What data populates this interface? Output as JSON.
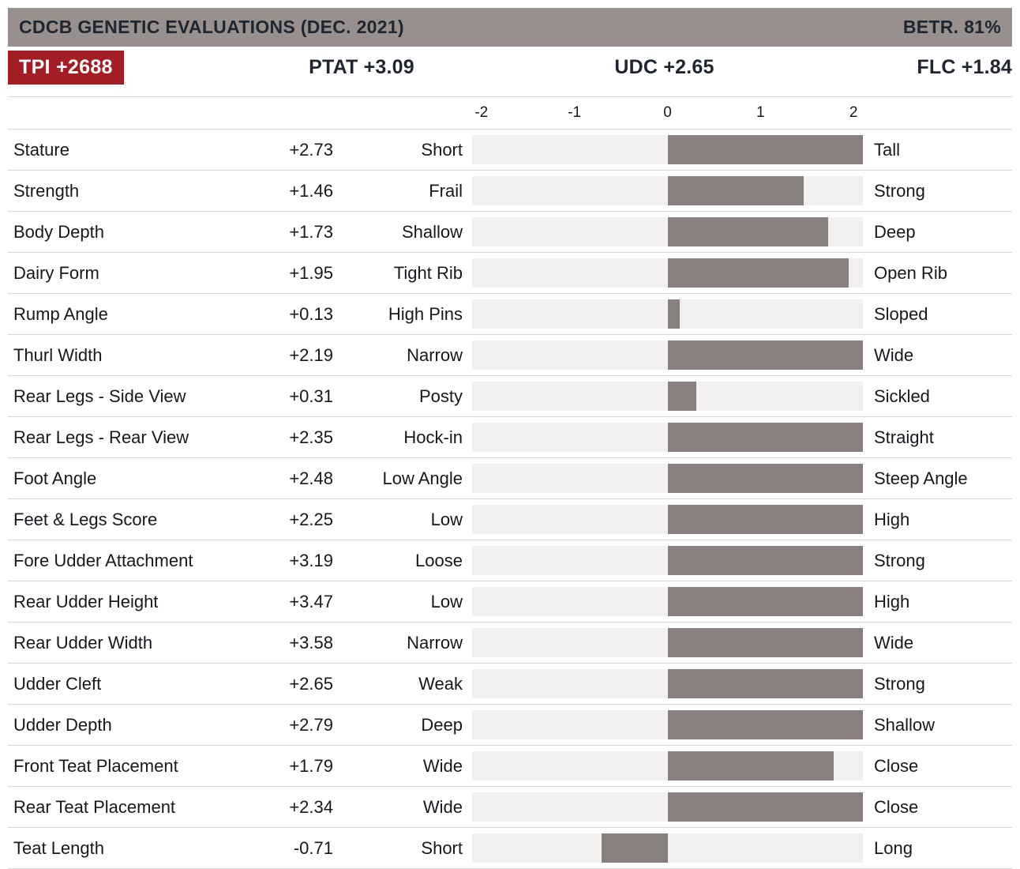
{
  "header": {
    "title": "CDCB GENETIC EVALUATIONS (DEC. 2021)",
    "reliability": "BETR. 81%"
  },
  "summary": {
    "tpi": "TPI +2688",
    "ptat": "PTAT +3.09",
    "udc": "UDC +2.65",
    "flc": "FLC +1.84"
  },
  "colors": {
    "header_bg": "#97908f",
    "badge_bg": "#a31e24",
    "bar_fill": "#87807f",
    "track_bg": "#f1f0ef",
    "divider": "#d9d9d9",
    "header_text": "#20262f",
    "badge_text": "#ffffff"
  },
  "chart_data": {
    "type": "bar",
    "orientation": "horizontal",
    "title": "CDCB GENETIC EVALUATIONS (DEC. 2021)",
    "axis_ticks": [
      -2,
      -1,
      0,
      1,
      2
    ],
    "axis_range": [
      -2.1,
      2.1
    ],
    "grid": false,
    "rows": [
      {
        "trait": "Stature",
        "value": 2.73,
        "value_label": "+2.73",
        "low_label": "Short",
        "high_label": "Tall"
      },
      {
        "trait": "Strength",
        "value": 1.46,
        "value_label": "+1.46",
        "low_label": "Frail",
        "high_label": "Strong"
      },
      {
        "trait": "Body Depth",
        "value": 1.73,
        "value_label": "+1.73",
        "low_label": "Shallow",
        "high_label": "Deep"
      },
      {
        "trait": "Dairy Form",
        "value": 1.95,
        "value_label": "+1.95",
        "low_label": "Tight Rib",
        "high_label": "Open Rib"
      },
      {
        "trait": "Rump Angle",
        "value": 0.13,
        "value_label": "+0.13",
        "low_label": "High Pins",
        "high_label": "Sloped"
      },
      {
        "trait": "Thurl Width",
        "value": 2.19,
        "value_label": "+2.19",
        "low_label": "Narrow",
        "high_label": "Wide"
      },
      {
        "trait": "Rear Legs - Side View",
        "value": 0.31,
        "value_label": "+0.31",
        "low_label": "Posty",
        "high_label": "Sickled"
      },
      {
        "trait": "Rear Legs - Rear View",
        "value": 2.35,
        "value_label": "+2.35",
        "low_label": "Hock-in",
        "high_label": "Straight"
      },
      {
        "trait": "Foot Angle",
        "value": 2.48,
        "value_label": "+2.48",
        "low_label": "Low Angle",
        "high_label": "Steep Angle"
      },
      {
        "trait": "Feet & Legs Score",
        "value": 2.25,
        "value_label": "+2.25",
        "low_label": "Low",
        "high_label": "High"
      },
      {
        "trait": "Fore Udder Attachment",
        "value": 3.19,
        "value_label": "+3.19",
        "low_label": "Loose",
        "high_label": "Strong"
      },
      {
        "trait": "Rear Udder Height",
        "value": 3.47,
        "value_label": "+3.47",
        "low_label": "Low",
        "high_label": "High"
      },
      {
        "trait": "Rear Udder Width",
        "value": 3.58,
        "value_label": "+3.58",
        "low_label": "Narrow",
        "high_label": "Wide"
      },
      {
        "trait": "Udder Cleft",
        "value": 2.65,
        "value_label": "+2.65",
        "low_label": "Weak",
        "high_label": "Strong"
      },
      {
        "trait": "Udder Depth",
        "value": 2.79,
        "value_label": "+2.79",
        "low_label": "Deep",
        "high_label": "Shallow"
      },
      {
        "trait": "Front Teat Placement",
        "value": 1.79,
        "value_label": "+1.79",
        "low_label": "Wide",
        "high_label": "Close"
      },
      {
        "trait": "Rear Teat Placement",
        "value": 2.34,
        "value_label": "+2.34",
        "low_label": "Wide",
        "high_label": "Close"
      },
      {
        "trait": "Teat Length",
        "value": -0.71,
        "value_label": "-0.71",
        "low_label": "Short",
        "high_label": "Long"
      }
    ]
  }
}
